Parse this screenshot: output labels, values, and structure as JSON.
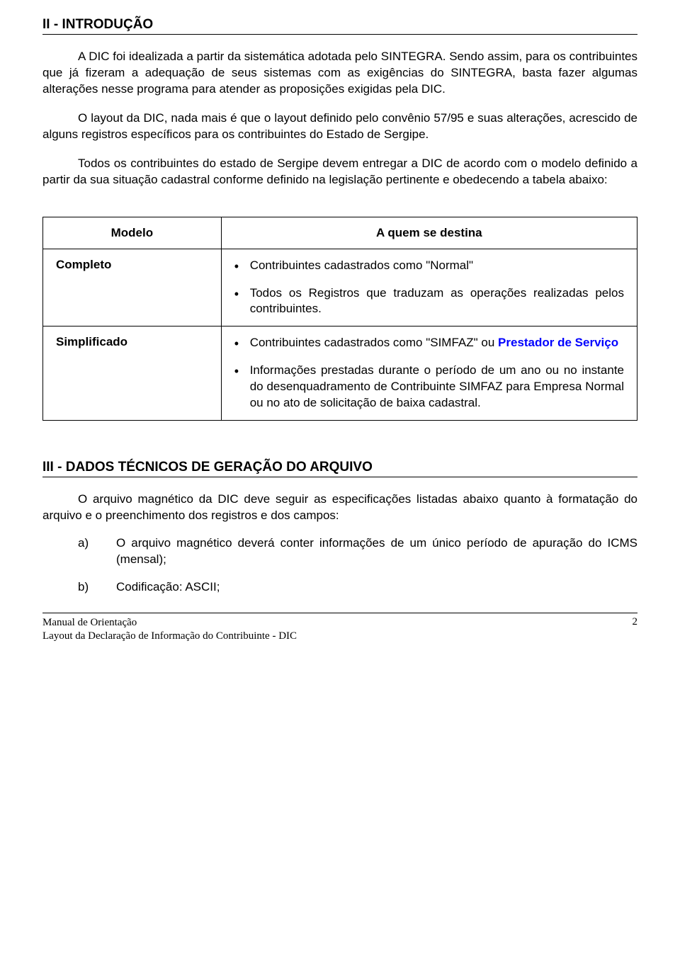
{
  "section2": {
    "title": "II - INTRODUÇÃO",
    "p1": "A DIC foi idealizada a partir da sistemática adotada pelo SINTEGRA. Sendo assim, para os contribuintes que já fizeram a adequação de seus sistemas com as exigências do SINTEGRA, basta fazer algumas alterações nesse programa para atender as proposições exigidas pela DIC.",
    "p2": "O layout da DIC, nada mais é que o layout definido pelo convênio 57/95 e suas alterações, acrescido de alguns registros específicos para os contribuintes do Estado de Sergipe.",
    "p3": "Todos os contribuintes do estado de Sergipe devem entregar a DIC de acordo com o modelo definido a partir da sua situação cadastral conforme definido na legislação pertinente e obedecendo a tabela abaixo:"
  },
  "table": {
    "header_model": "Modelo",
    "header_dest": "A quem se destina",
    "rows": [
      {
        "model": "Completo",
        "bullets": [
          {
            "text": "Contribuintes cadastrados como \"Normal\""
          },
          {
            "text": "Todos os Registros que traduzam as operações realizadas pelos contribuintes."
          }
        ]
      },
      {
        "model": "Simplificado",
        "bullets": [
          {
            "prefix": "Contribuintes cadastrados como \"SIMFAZ\" ou ",
            "highlight": "Prestador de Serviço"
          },
          {
            "text": "Informações prestadas durante o período de um ano ou no instante do desenquadramento de Contribuinte SIMFAZ para Empresa Normal ou no ato de solicitação de baixa cadastral."
          }
        ]
      }
    ]
  },
  "section3": {
    "title": "III - DADOS TÉCNICOS DE GERAÇÃO DO ARQUIVO",
    "p1": "O arquivo magnético da DIC deve seguir as especificações listadas abaixo quanto à formatação do arquivo e o preenchimento dos registros e dos campos:",
    "items": [
      {
        "marker": "a)",
        "text": "O arquivo magnético deverá conter informações de um único período de apuração do ICMS (mensal);"
      },
      {
        "marker": "b)",
        "text": "Codificação: ASCII;"
      }
    ]
  },
  "footer": {
    "line1": "Manual de Orientação",
    "line2": "Layout da Declaração de Informação do Contribuinte - DIC",
    "page": "2"
  },
  "colors": {
    "text": "#000000",
    "hr": "#000000",
    "highlight_blue": "#0000ff",
    "background": "#ffffff"
  },
  "typography": {
    "body_font": "Arial",
    "footer_font": "Times New Roman",
    "title_size_pt": 14,
    "body_size_pt": 13,
    "footer_size_pt": 11
  }
}
